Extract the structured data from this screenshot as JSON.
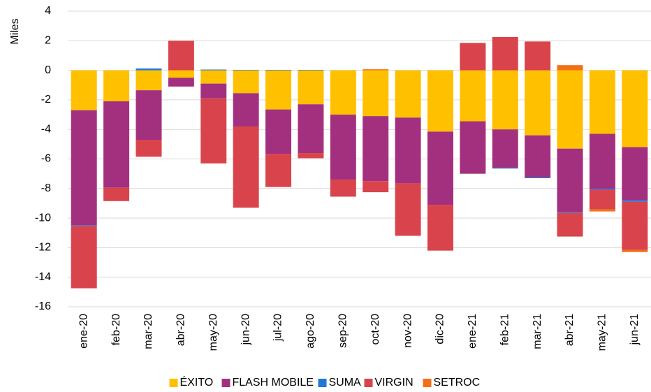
{
  "chart_data": {
    "type": "bar",
    "stacked": true,
    "y_label": "Miles",
    "categories": [
      "ene-20",
      "feb-20",
      "mar-20",
      "abr-20",
      "may-20",
      "jun-20",
      "jul-20",
      "ago-20",
      "sep-20",
      "oct-20",
      "nov-20",
      "dic-20",
      "ene-21",
      "feb-21",
      "mar-21",
      "abr-21",
      "may-21",
      "jun-21"
    ],
    "series": [
      {
        "name": "ÉXITO",
        "color": "#FFC000",
        "values": [
          -2.7,
          -2.1,
          -1.35,
          -0.5,
          -0.9,
          -1.55,
          -2.65,
          -2.3,
          -3.0,
          -3.1,
          -3.2,
          -4.15,
          -3.45,
          -4.0,
          -4.4,
          -5.3,
          -4.3,
          -5.2
        ]
      },
      {
        "name": "FLASH MOBILE",
        "color": "#A3307E",
        "values": [
          -7.8,
          -5.85,
          -3.35,
          -0.6,
          -1.0,
          -2.25,
          -3.0,
          -3.3,
          -4.4,
          -4.4,
          -4.45,
          -4.95,
          -3.55,
          -2.6,
          -2.85,
          -4.3,
          -3.75,
          -3.6
        ]
      },
      {
        "name": "SUMA",
        "color": "#1F77D8",
        "values": [
          -0.05,
          0,
          0.12,
          0,
          0.05,
          0.03,
          0.03,
          0.03,
          0,
          0,
          0,
          0,
          0,
          -0.05,
          -0.05,
          -0.05,
          -0.05,
          -0.1
        ]
      },
      {
        "name": "VIRGIN",
        "color": "#D9434B",
        "values": [
          -4.2,
          -0.9,
          -1.15,
          2.0,
          -4.4,
          -5.5,
          -2.25,
          -0.35,
          -1.15,
          -0.75,
          -3.55,
          -3.1,
          1.85,
          2.25,
          1.95,
          -1.6,
          -1.3,
          -3.25
        ]
      },
      {
        "name": "SETROC",
        "color": "#F46F1A",
        "values": [
          0,
          0,
          0,
          0,
          0,
          0,
          0,
          0,
          0,
          0.07,
          0,
          0,
          0,
          0,
          0,
          0.35,
          -0.15,
          -0.15
        ]
      }
    ],
    "ylim": [
      -16,
      4
    ],
    "yticks": [
      -16,
      -14,
      -12,
      -10,
      -8,
      -6,
      -4,
      -2,
      0,
      2,
      4
    ],
    "grid": true,
    "legend": "bottom"
  }
}
